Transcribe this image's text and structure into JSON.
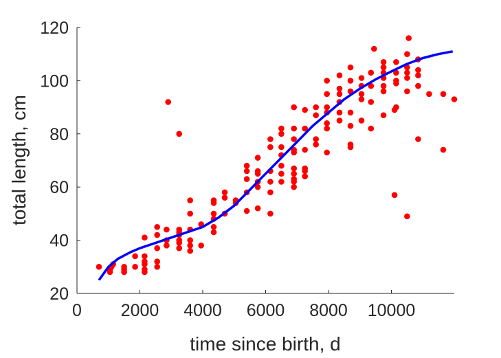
{
  "chart_data": {
    "type": "scatter",
    "title": "",
    "xlabel": "time since birth, d",
    "ylabel": "total length, cm",
    "xlim": [
      0,
      12000
    ],
    "ylim": [
      20,
      120
    ],
    "xticks": [
      0,
      2000,
      4000,
      6000,
      8000,
      10000
    ],
    "yticks": [
      20,
      40,
      60,
      80,
      100,
      120
    ],
    "grid": false,
    "legend": "none",
    "colors": {
      "points": "#ff0000",
      "fit": "#0000ff",
      "axis": "#262626"
    },
    "series": [
      {
        "kind": "scatter",
        "points": [
          [
            700,
            30
          ],
          [
            1050,
            28
          ],
          [
            1050,
            29
          ],
          [
            1100,
            30
          ],
          [
            1150,
            31
          ],
          [
            1500,
            28
          ],
          [
            1500,
            29
          ],
          [
            1500,
            30
          ],
          [
            1850,
            30
          ],
          [
            1850,
            34
          ],
          [
            2150,
            28
          ],
          [
            2150,
            29
          ],
          [
            2150,
            31
          ],
          [
            2150,
            32
          ],
          [
            2150,
            34
          ],
          [
            2150,
            41
          ],
          [
            2550,
            30
          ],
          [
            2550,
            32
          ],
          [
            2550,
            37
          ],
          [
            2550,
            42
          ],
          [
            2550,
            45
          ],
          [
            2850,
            38
          ],
          [
            2850,
            40
          ],
          [
            2850,
            44
          ],
          [
            2900,
            92
          ],
          [
            3250,
            80
          ],
          [
            3250,
            37
          ],
          [
            3250,
            39
          ],
          [
            3250,
            40
          ],
          [
            3250,
            42
          ],
          [
            3250,
            43
          ],
          [
            3250,
            44
          ],
          [
            3600,
            36
          ],
          [
            3600,
            38
          ],
          [
            3600,
            40
          ],
          [
            3600,
            44
          ],
          [
            3600,
            50
          ],
          [
            3600,
            55
          ],
          [
            3950,
            38
          ],
          [
            3950,
            46
          ],
          [
            4350,
            43
          ],
          [
            4350,
            45
          ],
          [
            4350,
            48
          ],
          [
            4350,
            50
          ],
          [
            4350,
            54
          ],
          [
            4350,
            55
          ],
          [
            4700,
            50
          ],
          [
            4700,
            56
          ],
          [
            4700,
            58
          ],
          [
            5050,
            54
          ],
          [
            5050,
            55
          ],
          [
            5400,
            51
          ],
          [
            5400,
            58
          ],
          [
            5400,
            63
          ],
          [
            5400,
            66
          ],
          [
            5400,
            68
          ],
          [
            5750,
            52
          ],
          [
            5750,
            60
          ],
          [
            5750,
            62
          ],
          [
            5750,
            65
          ],
          [
            5750,
            66
          ],
          [
            5750,
            71
          ],
          [
            6150,
            50
          ],
          [
            6150,
            58
          ],
          [
            6150,
            62
          ],
          [
            6150,
            66
          ],
          [
            6150,
            75
          ],
          [
            6150,
            78
          ],
          [
            6500,
            62
          ],
          [
            6500,
            65
          ],
          [
            6500,
            68
          ],
          [
            6500,
            72
          ],
          [
            6500,
            75
          ],
          [
            6500,
            80
          ],
          [
            6500,
            82
          ],
          [
            6900,
            60
          ],
          [
            6900,
            62
          ],
          [
            6900,
            63
          ],
          [
            6900,
            65
          ],
          [
            6900,
            67
          ],
          [
            6900,
            73
          ],
          [
            6900,
            74
          ],
          [
            6900,
            78
          ],
          [
            6900,
            82
          ],
          [
            6900,
            90
          ],
          [
            7250,
            64
          ],
          [
            7250,
            66
          ],
          [
            7250,
            67
          ],
          [
            7250,
            74
          ],
          [
            7250,
            82
          ],
          [
            7250,
            89
          ],
          [
            7600,
            76
          ],
          [
            7600,
            78
          ],
          [
            7600,
            87
          ],
          [
            7600,
            90
          ],
          [
            7950,
            73
          ],
          [
            7950,
            82
          ],
          [
            7950,
            84
          ],
          [
            7950,
            88
          ],
          [
            7950,
            90
          ],
          [
            7950,
            95
          ],
          [
            7950,
            100
          ],
          [
            8350,
            85
          ],
          [
            8350,
            88
          ],
          [
            8350,
            92
          ],
          [
            8350,
            95
          ],
          [
            8350,
            97
          ],
          [
            8350,
            102
          ],
          [
            8700,
            75
          ],
          [
            8700,
            76
          ],
          [
            8700,
            83
          ],
          [
            8700,
            88
          ],
          [
            8700,
            96
          ],
          [
            8700,
            100
          ],
          [
            8700,
            105
          ],
          [
            9050,
            85
          ],
          [
            9050,
            93
          ],
          [
            9050,
            95
          ],
          [
            9050,
            98
          ],
          [
            9050,
            101
          ],
          [
            9350,
            82
          ],
          [
            9350,
            92
          ],
          [
            9350,
            98
          ],
          [
            9350,
            103
          ],
          [
            9450,
            112
          ],
          [
            9750,
            87
          ],
          [
            9750,
            96
          ],
          [
            9750,
            98
          ],
          [
            9750,
            101
          ],
          [
            9750,
            103
          ],
          [
            9750,
            105
          ],
          [
            9750,
            107
          ],
          [
            10100,
            57
          ],
          [
            10100,
            89
          ],
          [
            10150,
            90
          ],
          [
            10150,
            99
          ],
          [
            10150,
            100
          ],
          [
            10150,
            103
          ],
          [
            10150,
            107
          ],
          [
            10500,
            49
          ],
          [
            10500,
            96
          ],
          [
            10500,
            101
          ],
          [
            10500,
            103
          ],
          [
            10500,
            105
          ],
          [
            10500,
            110
          ],
          [
            10550,
            116
          ],
          [
            10850,
            78
          ],
          [
            10850,
            98
          ],
          [
            10850,
            102
          ],
          [
            10850,
            104
          ],
          [
            10850,
            108
          ],
          [
            11200,
            95
          ],
          [
            11650,
            74
          ],
          [
            11650,
            95
          ],
          [
            12000,
            93
          ]
        ]
      },
      {
        "kind": "line",
        "points": [
          [
            700,
            25
          ],
          [
            1000,
            30
          ],
          [
            1300,
            33
          ],
          [
            1700,
            35.5
          ],
          [
            2000,
            37
          ],
          [
            2500,
            39
          ],
          [
            3000,
            41
          ],
          [
            3500,
            43
          ],
          [
            4000,
            45
          ],
          [
            4500,
            48.5
          ],
          [
            5000,
            53
          ],
          [
            5500,
            59
          ],
          [
            6000,
            65
          ],
          [
            6500,
            71
          ],
          [
            7000,
            77
          ],
          [
            7500,
            83
          ],
          [
            8000,
            88
          ],
          [
            8500,
            93
          ],
          [
            9000,
            97
          ],
          [
            9500,
            100.5
          ],
          [
            10000,
            103.5
          ],
          [
            10500,
            106.3
          ],
          [
            11000,
            108.5
          ],
          [
            11500,
            110
          ],
          [
            11950,
            111
          ]
        ]
      }
    ]
  }
}
